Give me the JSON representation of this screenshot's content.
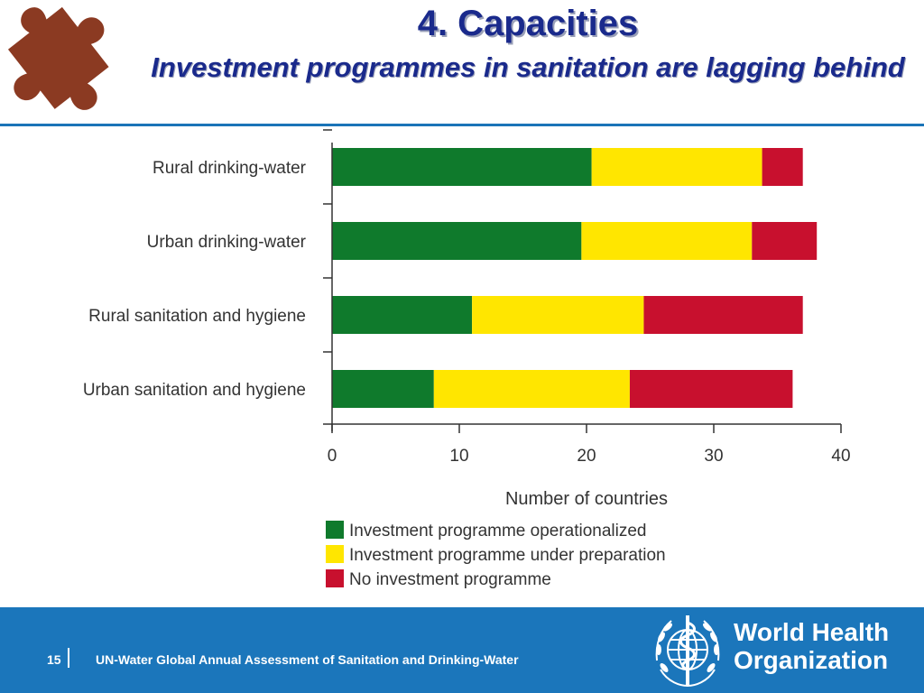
{
  "slide": {
    "title": "4. Capacities",
    "subtitle": "Investment programmes in sanitation are lagging behind",
    "page_number": "15",
    "footer_text": "UN-Water Global Annual Assessment of Sanitation and Drinking-Water",
    "org_name_line1": "World Health",
    "org_name_line2": "Organization"
  },
  "colors": {
    "title": "#1a2a8c",
    "puzzle": "#8b3a22",
    "divider": "#1a74b8",
    "footer": "#1b76bb"
  },
  "chart_data": {
    "type": "bar",
    "orientation": "horizontal",
    "stacked": true,
    "categories": [
      "Rural drinking-water",
      "Urban drinking-water",
      "Rural sanitation and hygiene",
      "Urban sanitation and hygiene"
    ],
    "series": [
      {
        "name": "Investment programme operationalized",
        "color": "#0f7a2c",
        "values": [
          20.4,
          19.6,
          11.0,
          8.0
        ]
      },
      {
        "name": "Investment programme under preparation",
        "color": "#ffe600",
        "values": [
          13.4,
          13.4,
          13.5,
          15.4
        ]
      },
      {
        "name": "No investment programme",
        "color": "#c8102e",
        "values": [
          3.2,
          5.1,
          12.5,
          12.8
        ]
      }
    ],
    "xlabel": "Number of countries",
    "xlim": [
      0,
      40
    ],
    "xticks": [
      "0",
      "10",
      "20",
      "30",
      "40"
    ],
    "grid": false,
    "legend_position": "bottom"
  }
}
